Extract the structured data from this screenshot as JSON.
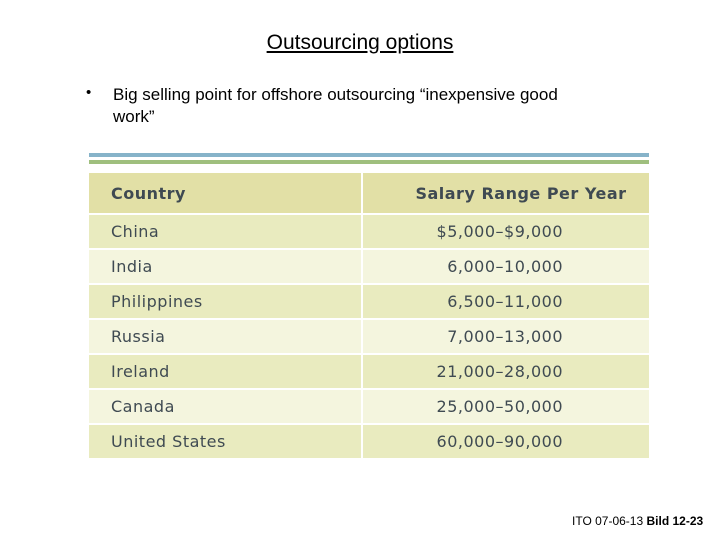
{
  "slide": {
    "title": "Outsourcing options",
    "bullet_marker": "•",
    "bullet_text": "Big selling point for offshore outsourcing “inexpensive good work”"
  },
  "table": {
    "headers": [
      "Country",
      "Salary Range Per Year"
    ],
    "rows": [
      [
        "China",
        "$5,000–$9,000"
      ],
      [
        "India",
        "6,000–10,000"
      ],
      [
        "Philippines",
        "6,500–11,000"
      ],
      [
        "Russia",
        "7,000–13,000"
      ],
      [
        "Ireland",
        "21,000–28,000"
      ],
      [
        "Canada",
        "25,000–50,000"
      ],
      [
        "United States",
        "60,000–90,000"
      ]
    ],
    "colors": {
      "header_bg": "#e2e0a6",
      "row_odd_bg": "#e9ebbf",
      "row_even_bg": "#f4f5de",
      "header_text": "#3f4a52",
      "cell_text": "#3f4a52",
      "rule_top": "#86b3c9",
      "rule_bottom": "#9fbf7e"
    }
  },
  "footer": {
    "code": "ITO  07-06-13",
    "page": "Bild 12-23"
  }
}
